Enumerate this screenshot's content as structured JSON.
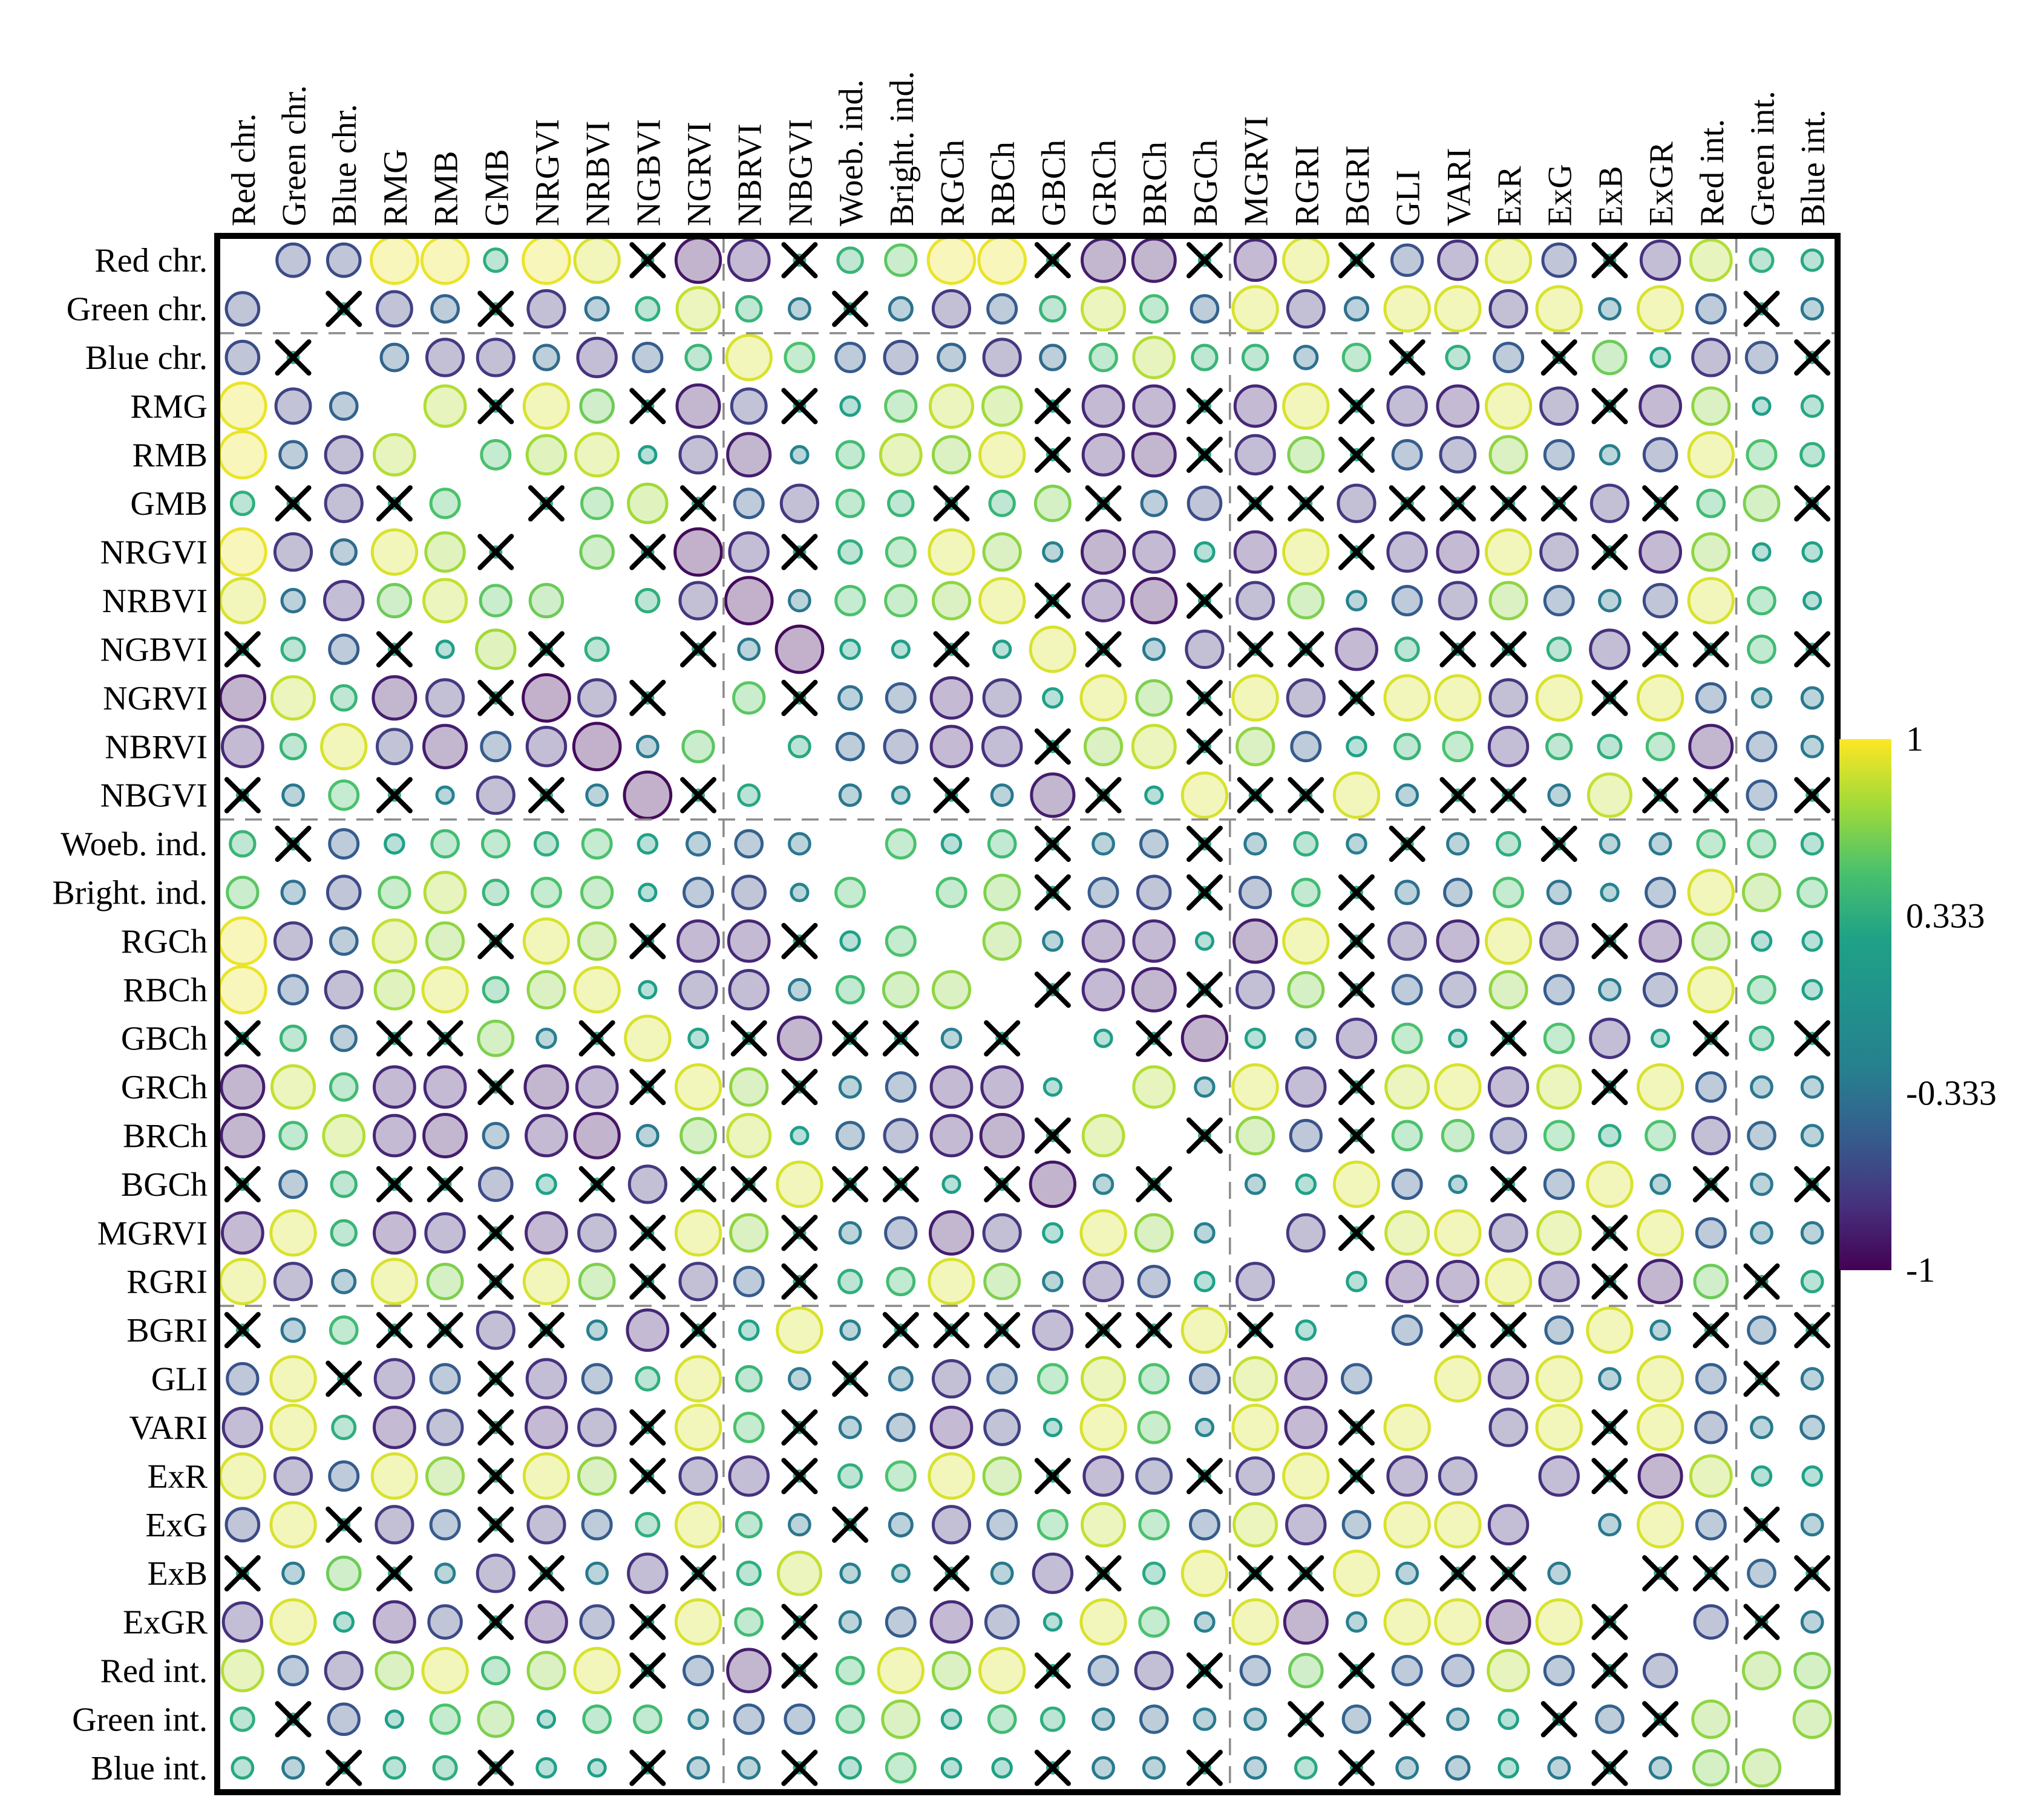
{
  "chart_data": {
    "type": "heatmap",
    "subtype": "correlogram-circles",
    "title": "",
    "labels": [
      "Red chr.",
      "Green chr.",
      "Blue chr.",
      "RMG",
      "RMB",
      "GMB",
      "NRGVI",
      "NRBVI",
      "NGBVI",
      "NGRVI",
      "NBRVI",
      "NBGVI",
      "Woeb. ind.",
      "Bright. ind.",
      "RGCh",
      "RBCh",
      "GBCh",
      "GRCh",
      "BRCh",
      "BGCh",
      "MGRVI",
      "RGRI",
      "BGRI",
      "GLI",
      "VARI",
      "ExR",
      "ExG",
      "ExB",
      "ExGR",
      "Red int.",
      "Green int.",
      "Blue int."
    ],
    "x_marker": "X",
    "matrix": [
      [
        null,
        -0.6,
        -0.6,
        0.95,
        0.95,
        0.35,
        0.95,
        0.9,
        "X",
        -0.9,
        -0.8,
        "X",
        0.4,
        0.55,
        0.95,
        0.95,
        "X",
        -0.85,
        -0.85,
        "X",
        -0.8,
        0.9,
        "X",
        -0.55,
        -0.75,
        0.9,
        -0.6,
        "X",
        -0.75,
        0.8,
        0.35,
        0.3
      ],
      [
        -0.6,
        null,
        "X",
        -0.65,
        -0.45,
        "X",
        -0.7,
        -0.35,
        0.35,
        0.85,
        0.4,
        -0.3,
        "X",
        -0.35,
        -0.7,
        -0.5,
        0.4,
        0.85,
        0.45,
        -0.45,
        0.9,
        -0.7,
        -0.35,
        0.9,
        0.9,
        -0.7,
        0.9,
        -0.3,
        0.9,
        -0.5,
        "X",
        -0.3
      ],
      [
        -0.6,
        "X",
        null,
        -0.45,
        -0.7,
        -0.7,
        -0.4,
        -0.75,
        -0.5,
        0.4,
        0.9,
        0.5,
        -0.5,
        -0.6,
        -0.45,
        -0.7,
        -0.4,
        0.45,
        0.8,
        0.4,
        0.4,
        -0.35,
        0.45,
        "X",
        0.35,
        -0.5,
        "X",
        0.6,
        0.25,
        -0.7,
        -0.55,
        "X"
      ],
      [
        0.95,
        -0.65,
        -0.45,
        null,
        0.8,
        "X",
        0.9,
        0.6,
        "X",
        -0.85,
        -0.65,
        "X",
        0.25,
        0.55,
        0.85,
        0.75,
        "X",
        -0.8,
        -0.8,
        "X",
        -0.8,
        0.9,
        "X",
        -0.75,
        -0.8,
        0.9,
        -0.7,
        "X",
        -0.8,
        0.7,
        0.2,
        0.3
      ],
      [
        0.95,
        -0.45,
        -0.7,
        0.8,
        null,
        0.5,
        0.75,
        0.85,
        0.2,
        -0.7,
        -0.85,
        -0.2,
        0.45,
        0.8,
        0.7,
        0.9,
        "X",
        -0.8,
        -0.85,
        "X",
        -0.75,
        0.65,
        "X",
        -0.5,
        -0.65,
        0.7,
        -0.5,
        -0.25,
        -0.6,
        0.9,
        0.5,
        0.35
      ],
      [
        0.35,
        "X",
        -0.7,
        "X",
        0.5,
        null,
        "X",
        0.55,
        0.75,
        "X",
        -0.5,
        -0.7,
        0.45,
        0.4,
        "X",
        0.4,
        0.65,
        "X",
        -0.4,
        -0.6,
        "X",
        "X",
        -0.7,
        "X",
        "X",
        "X",
        "X",
        -0.7,
        "X",
        0.45,
        0.65,
        "X"
      ],
      [
        0.95,
        -0.7,
        -0.4,
        0.9,
        0.75,
        "X",
        null,
        0.6,
        "X",
        -0.95,
        -0.75,
        "X",
        0.35,
        0.5,
        0.9,
        0.7,
        -0.25,
        -0.85,
        -0.8,
        0.25,
        -0.8,
        0.9,
        "X",
        -0.75,
        -0.8,
        0.9,
        -0.7,
        "X",
        -0.8,
        0.7,
        0.2,
        0.25
      ],
      [
        0.9,
        -0.35,
        -0.75,
        0.6,
        0.85,
        0.55,
        0.6,
        null,
        0.35,
        -0.7,
        -0.95,
        -0.3,
        0.5,
        0.55,
        0.7,
        0.9,
        "X",
        -0.8,
        -0.9,
        "X",
        -0.7,
        0.65,
        -0.25,
        -0.5,
        -0.7,
        0.7,
        -0.5,
        -0.3,
        -0.6,
        0.9,
        0.45,
        0.2
      ],
      [
        "X",
        0.35,
        -0.5,
        "X",
        0.2,
        0.75,
        "X",
        0.35,
        null,
        "X",
        -0.3,
        -0.95,
        0.25,
        0.2,
        "X",
        0.2,
        0.9,
        "X",
        -0.3,
        -0.7,
        "X",
        "X",
        -0.8,
        0.35,
        "X",
        "X",
        0.35,
        -0.75,
        "X",
        "X",
        0.45,
        "X"
      ],
      [
        -0.9,
        0.85,
        0.4,
        -0.85,
        -0.7,
        "X",
        -0.95,
        -0.7,
        "X",
        null,
        0.55,
        "X",
        -0.35,
        -0.5,
        -0.8,
        -0.7,
        0.25,
        0.9,
        0.65,
        "X",
        0.9,
        -0.7,
        "X",
        0.9,
        0.9,
        -0.7,
        0.9,
        "X",
        0.9,
        -0.5,
        -0.25,
        -0.3
      ],
      [
        -0.8,
        0.4,
        0.9,
        -0.65,
        -0.85,
        -0.5,
        -0.75,
        -0.95,
        -0.3,
        0.55,
        null,
        0.3,
        -0.45,
        -0.6,
        -0.8,
        -0.75,
        "X",
        0.7,
        0.85,
        "X",
        0.7,
        -0.5,
        0.25,
        0.4,
        0.5,
        -0.75,
        0.4,
        0.35,
        0.45,
        -0.85,
        -0.5,
        -0.3
      ],
      [
        "X",
        -0.3,
        0.5,
        "X",
        -0.2,
        -0.7,
        "X",
        -0.3,
        -0.95,
        "X",
        0.3,
        null,
        -0.3,
        -0.2,
        "X",
        -0.3,
        -0.85,
        "X",
        0.2,
        0.9,
        "X",
        "X",
        0.9,
        -0.3,
        "X",
        "X",
        -0.3,
        0.85,
        "X",
        "X",
        -0.5,
        "X"
      ],
      [
        0.4,
        "X",
        -0.5,
        0.25,
        0.45,
        0.45,
        0.35,
        0.5,
        0.25,
        -0.35,
        -0.45,
        -0.3,
        null,
        0.5,
        0.25,
        0.45,
        "X",
        -0.3,
        -0.45,
        "X",
        -0.3,
        0.35,
        -0.25,
        "X",
        -0.3,
        0.35,
        "X",
        -0.25,
        -0.3,
        0.45,
        0.45,
        0.3
      ],
      [
        0.55,
        -0.35,
        -0.6,
        0.55,
        0.8,
        0.4,
        0.5,
        0.55,
        0.2,
        -0.5,
        -0.6,
        -0.2,
        0.5,
        null,
        0.5,
        0.65,
        "X",
        -0.5,
        -0.6,
        "X",
        -0.55,
        0.45,
        "X",
        -0.35,
        -0.45,
        0.5,
        -0.35,
        -0.2,
        -0.5,
        0.9,
        0.7,
        0.5
      ],
      [
        0.95,
        -0.7,
        -0.45,
        0.85,
        0.7,
        "X",
        0.9,
        0.7,
        "X",
        -0.8,
        -0.8,
        "X",
        0.25,
        0.5,
        null,
        0.7,
        -0.25,
        -0.8,
        -0.8,
        0.2,
        -0.85,
        0.9,
        "X",
        -0.7,
        -0.8,
        0.9,
        -0.7,
        "X",
        -0.8,
        0.7,
        0.25,
        0.25
      ],
      [
        0.95,
        -0.5,
        -0.7,
        0.75,
        0.9,
        0.4,
        0.7,
        0.9,
        0.2,
        -0.7,
        -0.75,
        -0.3,
        0.45,
        0.65,
        0.7,
        null,
        "X",
        -0.8,
        -0.85,
        "X",
        -0.7,
        0.65,
        "X",
        -0.5,
        -0.65,
        0.7,
        -0.5,
        -0.3,
        -0.6,
        0.9,
        0.45,
        0.25
      ],
      [
        "X",
        0.4,
        -0.4,
        "X",
        "X",
        0.65,
        -0.25,
        "X",
        0.9,
        0.25,
        "X",
        -0.85,
        "X",
        "X",
        -0.25,
        "X",
        null,
        0.2,
        "X",
        -0.9,
        0.25,
        -0.25,
        -0.75,
        0.5,
        0.2,
        "X",
        0.5,
        -0.75,
        0.2,
        "X",
        0.35,
        "X"
      ],
      [
        -0.85,
        0.85,
        0.45,
        -0.8,
        -0.8,
        "X",
        -0.85,
        -0.8,
        "X",
        0.9,
        0.7,
        "X",
        -0.3,
        -0.5,
        -0.8,
        -0.8,
        0.2,
        null,
        0.8,
        -0.25,
        0.9,
        -0.75,
        "X",
        0.85,
        0.9,
        -0.75,
        0.85,
        "X",
        0.9,
        -0.5,
        -0.3,
        -0.3
      ],
      [
        -0.85,
        0.45,
        0.8,
        -0.8,
        -0.85,
        -0.4,
        -0.8,
        -0.9,
        -0.3,
        0.65,
        0.85,
        0.2,
        -0.45,
        -0.6,
        -0.8,
        -0.85,
        "X",
        0.8,
        null,
        "X",
        0.7,
        -0.55,
        "X",
        0.5,
        0.55,
        -0.65,
        0.5,
        0.3,
        0.5,
        -0.7,
        -0.45,
        -0.3
      ],
      [
        "X",
        -0.45,
        0.4,
        "X",
        "X",
        -0.6,
        0.25,
        "X",
        -0.7,
        "X",
        "X",
        0.9,
        "X",
        "X",
        0.2,
        "X",
        -0.9,
        -0.25,
        "X",
        null,
        -0.25,
        0.25,
        0.9,
        -0.5,
        -0.2,
        "X",
        -0.5,
        0.9,
        -0.25,
        "X",
        -0.3,
        "X"
      ],
      [
        -0.8,
        0.9,
        0.4,
        -0.8,
        -0.75,
        "X",
        -0.8,
        -0.7,
        "X",
        0.9,
        0.7,
        "X",
        -0.3,
        -0.55,
        -0.85,
        -0.7,
        0.25,
        0.9,
        0.7,
        -0.25,
        null,
        -0.7,
        "X",
        0.85,
        0.9,
        -0.7,
        0.85,
        "X",
        0.9,
        -0.5,
        -0.3,
        -0.3
      ],
      [
        0.9,
        -0.7,
        -0.35,
        0.9,
        0.65,
        "X",
        0.9,
        0.65,
        "X",
        -0.7,
        -0.5,
        "X",
        0.35,
        0.45,
        0.9,
        0.65,
        -0.25,
        -0.75,
        -0.55,
        0.25,
        -0.7,
        null,
        0.25,
        -0.8,
        -0.8,
        0.9,
        -0.75,
        "X",
        -0.85,
        0.6,
        "X",
        0.3
      ],
      [
        "X",
        -0.35,
        0.45,
        "X",
        "X",
        -0.7,
        "X",
        -0.25,
        -0.8,
        "X",
        0.25,
        0.9,
        -0.25,
        "X",
        "X",
        "X",
        -0.75,
        "X",
        "X",
        0.9,
        "X",
        0.25,
        null,
        -0.5,
        "X",
        "X",
        -0.45,
        0.9,
        -0.25,
        "X",
        -0.45,
        "X"
      ],
      [
        -0.55,
        0.9,
        "X",
        -0.75,
        -0.5,
        "X",
        -0.75,
        -0.5,
        0.35,
        0.9,
        0.4,
        -0.3,
        "X",
        -0.35,
        -0.7,
        -0.5,
        0.5,
        0.85,
        0.5,
        -0.5,
        0.85,
        -0.8,
        -0.5,
        null,
        0.9,
        -0.75,
        0.9,
        -0.3,
        0.9,
        -0.5,
        "X",
        -0.3
      ],
      [
        -0.75,
        0.9,
        0.35,
        -0.8,
        -0.65,
        "X",
        -0.8,
        -0.7,
        "X",
        0.9,
        0.5,
        "X",
        -0.3,
        -0.45,
        -0.8,
        -0.65,
        0.2,
        0.9,
        0.55,
        -0.2,
        0.9,
        -0.8,
        "X",
        0.9,
        null,
        -0.7,
        0.9,
        "X",
        0.9,
        -0.55,
        -0.3,
        -0.35
      ],
      [
        0.9,
        -0.7,
        -0.5,
        0.9,
        0.7,
        "X",
        0.9,
        0.7,
        "X",
        -0.7,
        -0.75,
        "X",
        0.35,
        0.5,
        0.9,
        0.7,
        "X",
        -0.75,
        -0.65,
        "X",
        -0.7,
        0.9,
        "X",
        -0.75,
        -0.7,
        null,
        -0.75,
        "X",
        -0.85,
        0.8,
        0.25,
        0.25
      ],
      [
        -0.6,
        0.9,
        "X",
        -0.7,
        -0.5,
        "X",
        -0.7,
        -0.5,
        0.35,
        0.9,
        0.4,
        -0.3,
        "X",
        -0.35,
        -0.7,
        -0.5,
        0.5,
        0.85,
        0.5,
        -0.5,
        0.85,
        -0.75,
        -0.45,
        0.9,
        0.9,
        -0.75,
        null,
        -0.3,
        0.9,
        -0.5,
        "X",
        -0.3
      ],
      [
        "X",
        -0.3,
        0.6,
        "X",
        -0.25,
        -0.7,
        "X",
        -0.3,
        -0.75,
        "X",
        0.35,
        0.85,
        -0.25,
        -0.2,
        "X",
        -0.3,
        -0.75,
        "X",
        0.3,
        0.9,
        "X",
        "X",
        0.9,
        -0.3,
        "X",
        "X",
        -0.3,
        null,
        "X",
        "X",
        -0.45,
        "X"
      ],
      [
        -0.75,
        0.9,
        0.25,
        -0.8,
        -0.6,
        "X",
        -0.8,
        -0.6,
        "X",
        0.9,
        0.45,
        "X",
        -0.3,
        -0.5,
        -0.8,
        -0.6,
        0.2,
        0.9,
        0.5,
        -0.25,
        0.9,
        -0.85,
        -0.25,
        0.9,
        0.9,
        -0.85,
        0.9,
        "X",
        null,
        -0.6,
        "X",
        -0.3
      ],
      [
        0.8,
        -0.5,
        -0.7,
        0.7,
        0.9,
        0.45,
        0.7,
        0.9,
        "X",
        -0.5,
        -0.85,
        "X",
        0.45,
        0.9,
        0.7,
        0.9,
        "X",
        -0.5,
        -0.7,
        "X",
        -0.5,
        0.6,
        "X",
        -0.5,
        -0.55,
        0.8,
        -0.5,
        "X",
        -0.6,
        null,
        0.7,
        0.65
      ],
      [
        0.35,
        "X",
        -0.55,
        0.2,
        0.5,
        0.65,
        0.2,
        0.45,
        0.45,
        -0.25,
        -0.5,
        -0.5,
        0.45,
        0.7,
        0.25,
        0.45,
        0.35,
        -0.3,
        -0.45,
        -0.3,
        -0.3,
        "X",
        -0.45,
        "X",
        -0.3,
        0.25,
        "X",
        -0.45,
        "X",
        0.7,
        null,
        0.7
      ],
      [
        0.3,
        -0.3,
        "X",
        0.3,
        0.35,
        "X",
        0.25,
        0.2,
        "X",
        -0.3,
        -0.3,
        "X",
        0.3,
        0.5,
        0.25,
        0.25,
        "X",
        -0.3,
        -0.3,
        "X",
        -0.3,
        0.3,
        "X",
        -0.3,
        -0.35,
        0.25,
        -0.3,
        "X",
        -0.3,
        0.65,
        0.7,
        null
      ]
    ],
    "colorbar": {
      "ticks": [
        "1",
        "0.333",
        "-0.333",
        "-1"
      ],
      "tick_values": [
        1,
        0.333,
        -0.333,
        -1
      ],
      "colormap": "viridis",
      "top_color": "#fde725",
      "bottom_color": "#440154"
    },
    "layout": {
      "grid": "dashed-block-dividers",
      "col_dividers_after": [
        10,
        20,
        30
      ],
      "row_dividers_after": [
        2,
        12,
        22
      ],
      "legend_position": "right",
      "value_range": [
        -1,
        1
      ]
    }
  }
}
